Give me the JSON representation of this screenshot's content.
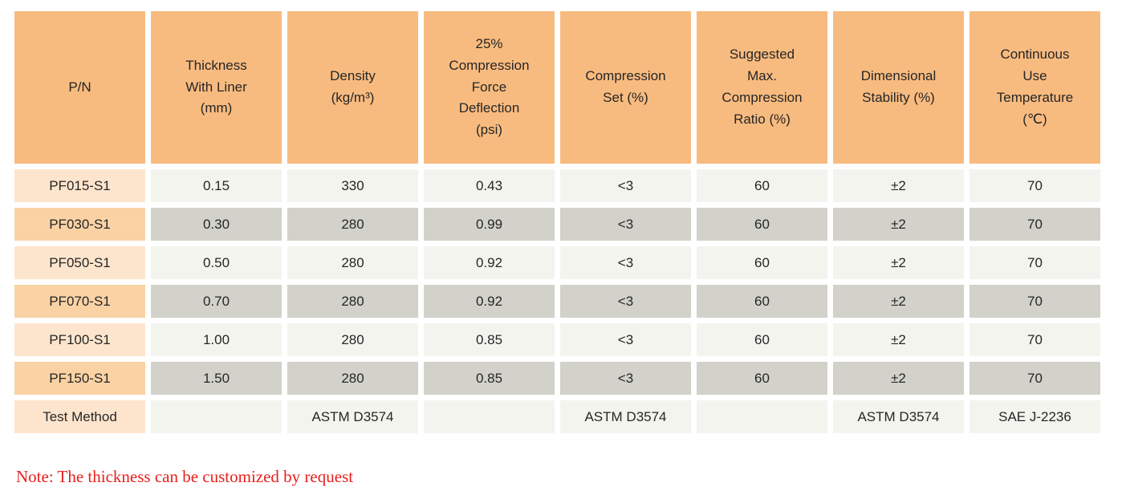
{
  "colors": {
    "header_bg": "#F8BB7F",
    "pn_cell_light": "#FDE5CD",
    "pn_cell_dark": "#FAD2A4",
    "data_cell_light": "#F4F4EF",
    "data_cell_dark": "#D2D2CB",
    "note_text": "#E8201E",
    "body_text": "#262626",
    "page_bg": "#FFFFFF"
  },
  "table": {
    "headers": [
      "P/N",
      "Thickness\nWith Liner\n(mm)",
      "Density\n(kg/m³)",
      "25%\nCompression\nForce\nDeflection\n(psi)",
      "Compression\nSet (%)",
      "Suggested\nMax.\nCompression\nRatio (%)",
      "Dimensional\nStability (%)",
      "Continuous\nUse\nTemperature\n(℃)"
    ],
    "rows": [
      [
        "PF015-S1",
        "0.15",
        "330",
        "0.43",
        "<3",
        "60",
        "±2",
        "70"
      ],
      [
        "PF030-S1",
        "0.30",
        "280",
        "0.99",
        "<3",
        "60",
        "±2",
        "70"
      ],
      [
        "PF050-S1",
        "0.50",
        "280",
        "0.92",
        "<3",
        "60",
        "±2",
        "70"
      ],
      [
        "PF070-S1",
        "0.70",
        "280",
        "0.92",
        "<3",
        "60",
        "±2",
        "70"
      ],
      [
        "PF100-S1",
        "1.00",
        "280",
        "0.85",
        "<3",
        "60",
        "±2",
        "70"
      ],
      [
        "PF150-S1",
        "1.50",
        "280",
        "0.85",
        "<3",
        "60",
        "±2",
        "70"
      ],
      [
        "Test Method",
        "",
        "ASTM D3574",
        "",
        "ASTM D3574",
        "",
        "ASTM D3574",
        "SAE J-2236"
      ]
    ]
  },
  "note": "Note: The thickness can be customized by request"
}
